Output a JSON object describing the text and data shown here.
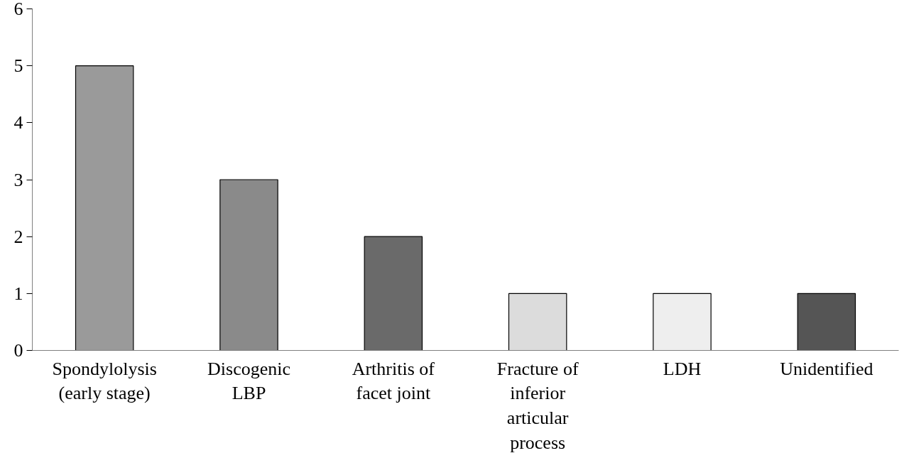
{
  "chart_data": {
    "type": "bar",
    "categories": [
      "Spondylolysis (early stage)",
      "Discogenic LBP",
      "Arthritis of facet joint",
      "Fracture of inferior articular process",
      "LDH",
      "Unidentified"
    ],
    "values": [
      5,
      3,
      2,
      1,
      1,
      1
    ],
    "colors": [
      "#9a9a9a",
      "#8a8a8a",
      "#6a6a6a",
      "#dcdcdc",
      "#eeeeee",
      "#555555"
    ],
    "ylim": [
      0,
      6
    ],
    "yticks": [
      0,
      1,
      2,
      3,
      4,
      5,
      6
    ],
    "grid": false
  }
}
